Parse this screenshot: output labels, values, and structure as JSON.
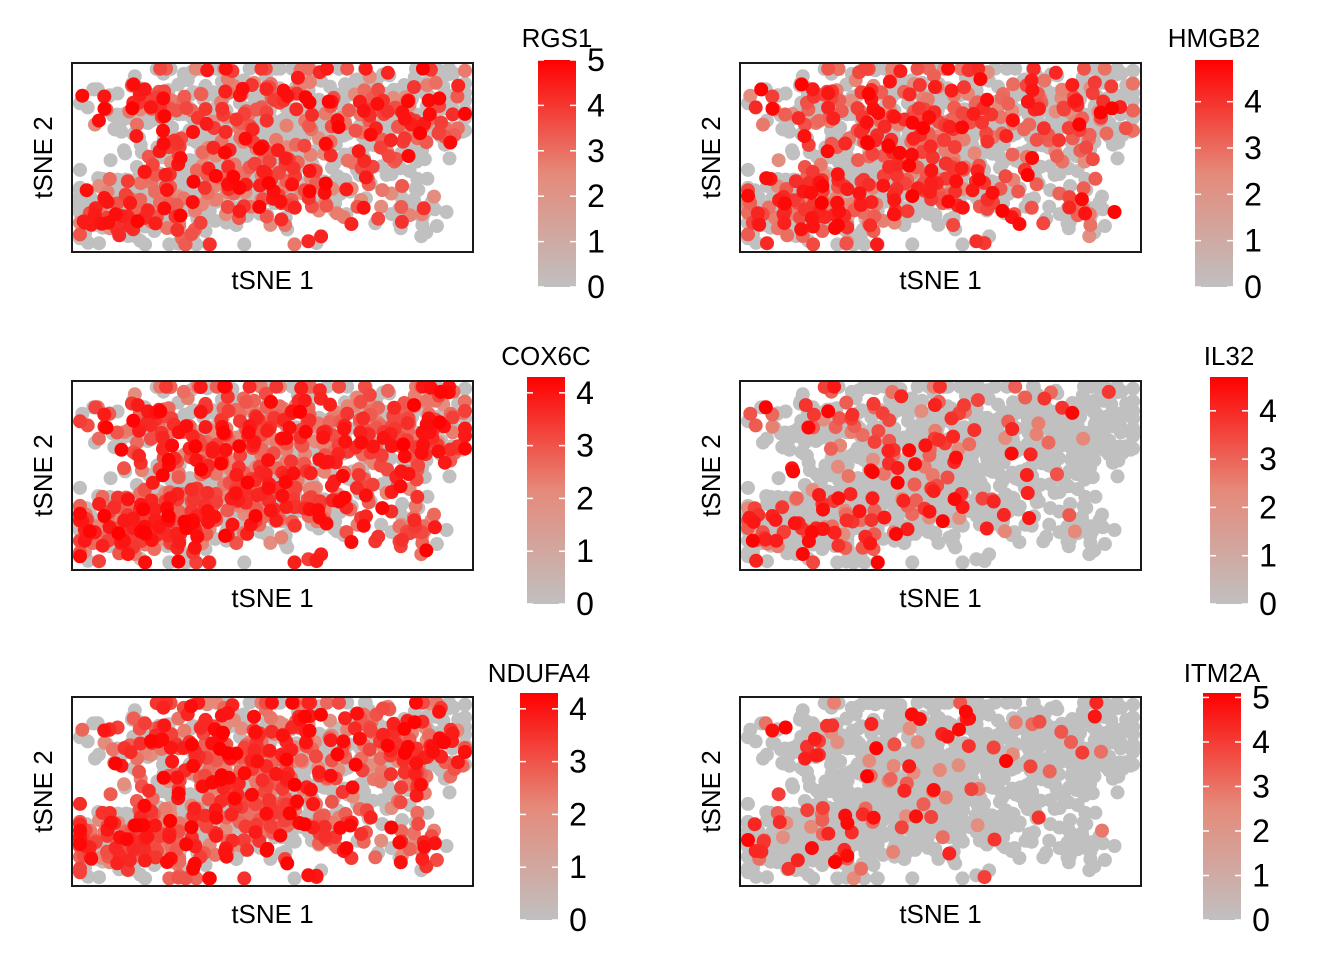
{
  "chart_data": [
    {
      "type": "scatter",
      "gene": "RGS1",
      "max": 5,
      "xlabel": "tSNE 1",
      "ylabel": "tSNE 2",
      "legend_ticks": [
        0,
        1,
        2,
        3,
        4,
        5
      ],
      "color_low": "#c0c0c0",
      "color_high": "#ff0000",
      "express_fraction": 0.3
    },
    {
      "type": "scatter",
      "gene": "HMGB2",
      "max": 4.9,
      "xlabel": "tSNE 1",
      "ylabel": "tSNE 2",
      "legend_ticks": [
        0,
        1,
        2,
        3,
        4
      ],
      "color_low": "#c0c0c0",
      "color_high": "#ff0000",
      "express_fraction": 0.28
    },
    {
      "type": "scatter",
      "gene": "COX6C",
      "max": 4.3,
      "xlabel": "tSNE 1",
      "ylabel": "tSNE 2",
      "legend_ticks": [
        0,
        1,
        2,
        3,
        4
      ],
      "color_low": "#c0c0c0",
      "color_high": "#ff0000",
      "express_fraction": 0.5
    },
    {
      "type": "scatter",
      "gene": "IL32",
      "max": 4.7,
      "xlabel": "tSNE 1",
      "ylabel": "tSNE 2",
      "legend_ticks": [
        0,
        1,
        2,
        3,
        4
      ],
      "color_low": "#c0c0c0",
      "color_high": "#ff0000",
      "express_fraction": 0.22
    },
    {
      "type": "scatter",
      "gene": "NDUFA4",
      "max": 4.3,
      "xlabel": "tSNE 1",
      "ylabel": "tSNE 2",
      "legend_ticks": [
        0,
        1,
        2,
        3,
        4
      ],
      "color_low": "#c0c0c0",
      "color_high": "#ff0000",
      "express_fraction": 0.45
    },
    {
      "type": "scatter",
      "gene": "ITM2A",
      "max": 5.1,
      "xlabel": "tSNE 1",
      "ylabel": "tSNE 2",
      "legend_ticks": [
        0,
        1,
        2,
        3,
        4,
        5
      ],
      "color_low": "#c0c0c0",
      "color_high": "#ff0000",
      "express_fraction": 0.12
    }
  ]
}
